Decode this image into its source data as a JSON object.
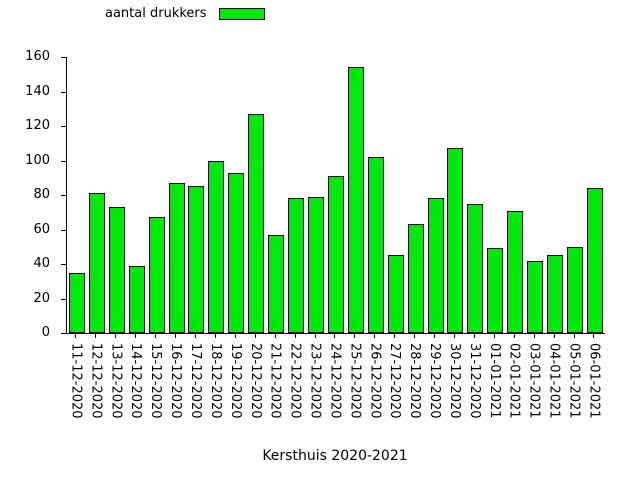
{
  "legend": {
    "label": "aantal drukkers"
  },
  "title": "Kersthuis 2020-2021",
  "chart_data": {
    "type": "bar",
    "title": "Kersthuis 2020-2021",
    "legend_label": "aantal drukkers",
    "legend_position": "top-left",
    "categories": [
      "11-12-2020",
      "12-12-2020",
      "13-12-2020",
      "14-12-2020",
      "15-12-2020",
      "16-12-2020",
      "17-12-2020",
      "18-12-2020",
      "19-12-2020",
      "20-12-2020",
      "21-12-2020",
      "22-12-2020",
      "23-12-2020",
      "24-12-2020",
      "25-12-2020",
      "26-12-2020",
      "27-12-2020",
      "28-12-2020",
      "29-12-2020",
      "30-12-2020",
      "31-12-2020",
      "01-01-2021",
      "02-01-2021",
      "03-01-2021",
      "04-01-2021",
      "05-01-2021",
      "06-01-2021"
    ],
    "values": [
      35,
      81,
      73,
      39,
      67,
      87,
      85,
      100,
      93,
      127,
      57,
      78,
      79,
      91,
      154,
      102,
      45,
      63,
      78,
      107,
      75,
      49,
      71,
      42,
      45,
      50,
      84
    ],
    "xlabel": "Kersthuis 2020-2021",
    "ylabel": "",
    "ylim": [
      0,
      160
    ],
    "y_ticks": [
      0,
      20,
      40,
      60,
      80,
      100,
      120,
      140,
      160
    ],
    "grid": false,
    "bar_color": "#00E80C",
    "bar_border_color": "#000000",
    "background_color": "#FFFFFF",
    "text_color": "#000000"
  }
}
